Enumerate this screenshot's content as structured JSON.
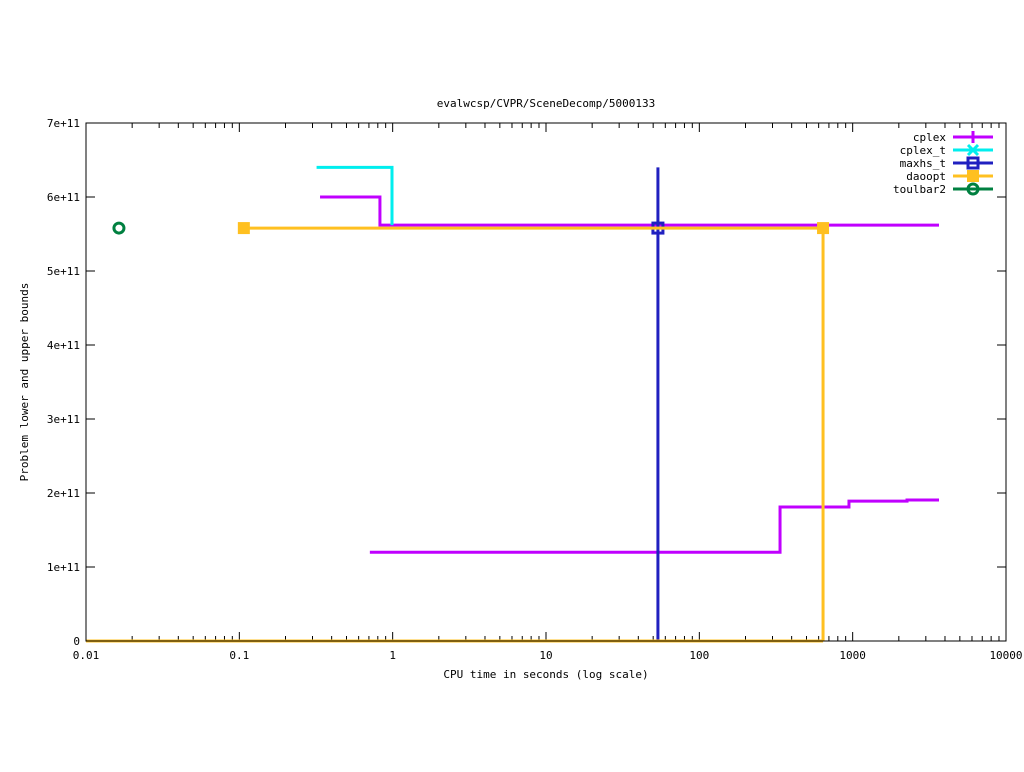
{
  "chart_data": {
    "type": "line",
    "title": "evalwcsp/CVPR/SceneDecomp/5000133",
    "xlabel": "CPU time in seconds (log scale)",
    "ylabel": "Problem lower and upper bounds",
    "xscale": "log",
    "xlim": [
      0.01,
      10000
    ],
    "ylim": [
      0,
      700000000000
    ],
    "xticks": [
      {
        "value": 0.01,
        "label": "0.01"
      },
      {
        "value": 0.1,
        "label": "0.1"
      },
      {
        "value": 1,
        "label": "1"
      },
      {
        "value": 10,
        "label": "10"
      },
      {
        "value": 100,
        "label": "100"
      },
      {
        "value": 1000,
        "label": "1000"
      },
      {
        "value": 10000,
        "label": "10000"
      }
    ],
    "yticks": [
      {
        "value": 0,
        "label": "0"
      },
      {
        "value": 100000000000,
        "label": "1e+11"
      },
      {
        "value": 200000000000,
        "label": "2e+11"
      },
      {
        "value": 300000000000,
        "label": "3e+11"
      },
      {
        "value": 400000000000,
        "label": "4e+11"
      },
      {
        "value": 500000000000,
        "label": "5e+11"
      },
      {
        "value": 600000000000,
        "label": "6e+11"
      },
      {
        "value": 700000000000,
        "label": "7e+11"
      }
    ],
    "grid": false,
    "legend_position": "top-right",
    "series": [
      {
        "name": "cplex",
        "color": "#c000ff",
        "marker": "plus",
        "paths": [
          [
            [
              0.336,
              600000000000
            ],
            [
              0.826,
              600000000000
            ],
            [
              0.826,
              562000000000
            ],
            [
              3656,
              562000000000
            ]
          ],
          [
            [
              0.71,
              120000000000
            ],
            [
              336,
              120000000000
            ],
            [
              336,
              181000000000
            ],
            [
              946,
              181000000000
            ],
            [
              946,
              189000000000
            ],
            [
              2262,
              189000000000
            ],
            [
              2262,
              190500000000
            ],
            [
              3656,
              190500000000
            ]
          ]
        ],
        "markers": []
      },
      {
        "name": "cplex_t",
        "color": "#00eeee",
        "marker": "cross",
        "paths": [
          [
            [
              0.319,
              640000000000
            ],
            [
              0.99,
              640000000000
            ],
            [
              0.99,
              562000000000
            ]
          ]
        ],
        "markers": []
      },
      {
        "name": "maxhs_t",
        "color": "#2020c0",
        "marker": "square",
        "paths": [
          [
            [
              53.7,
              0
            ],
            [
              53.7,
              640000000000
            ]
          ]
        ],
        "markers": [
          [
            53.7,
            558000000000
          ]
        ]
      },
      {
        "name": "daoopt",
        "color": "#ffc020",
        "marker": "filled-square",
        "paths": [
          [
            [
              0.107,
              558000000000
            ],
            [
              641,
              558000000000
            ],
            [
              641,
              0
            ]
          ],
          [
            [
              0.01,
              0
            ],
            [
              641,
              0
            ]
          ]
        ],
        "markers": [
          [
            0.107,
            558000000000
          ],
          [
            641,
            558000000000
          ]
        ]
      },
      {
        "name": "toulbar2",
        "color": "#008040",
        "marker": "circle",
        "paths": [],
        "markers": [
          [
            0.0164,
            558000000000
          ]
        ]
      }
    ]
  }
}
